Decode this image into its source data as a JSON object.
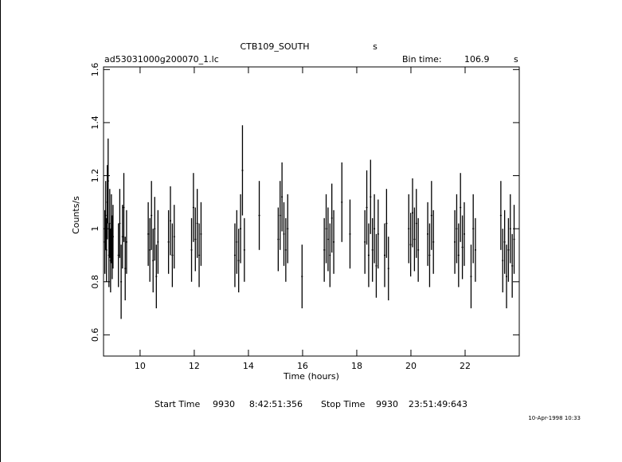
{
  "chart_data": {
    "type": "errorbar",
    "title": "CTB109_SOUTH",
    "title_unit": "s",
    "file_name": "ad53031000g200070_1.lc",
    "bin_time_label": "Bin time:",
    "bin_time": 106.9,
    "bin_time_unit": "s",
    "x_label": "Time (hours)",
    "y_label": "Counts/s",
    "xlim": [
      8.65,
      24.0
    ],
    "xticks": [
      10,
      12,
      14,
      16,
      18,
      20,
      22
    ],
    "ylim": [
      0.52,
      1.61
    ],
    "yticks": [
      0.6,
      0.8,
      1,
      1.2,
      1.4,
      1.6
    ],
    "color": "#000000",
    "x": [
      8.7,
      8.73,
      8.76,
      8.79,
      8.82,
      8.85,
      8.88,
      8.91,
      8.94,
      8.97,
      9.0,
      9.2,
      9.25,
      9.3,
      9.35,
      9.4,
      9.45,
      9.5,
      10.3,
      10.36,
      10.42,
      10.48,
      10.54,
      10.6,
      10.66,
      11.05,
      11.12,
      11.19,
      11.26,
      11.9,
      11.97,
      12.04,
      12.11,
      12.18,
      12.25,
      13.5,
      13.57,
      13.64,
      13.71,
      13.78,
      13.85,
      14.4,
      15.1,
      15.17,
      15.24,
      15.31,
      15.38,
      15.45,
      15.98,
      16.8,
      16.87,
      16.94,
      17.01,
      17.08,
      17.15,
      17.45,
      17.75,
      18.3,
      18.37,
      18.44,
      18.51,
      18.58,
      18.65,
      18.72,
      18.79,
      19.03,
      19.1,
      19.17,
      19.92,
      19.99,
      20.06,
      20.13,
      20.2,
      20.27,
      20.62,
      20.69,
      20.76,
      20.83,
      21.62,
      21.69,
      21.76,
      21.83,
      21.9,
      21.97,
      22.22,
      22.3,
      22.38,
      23.32,
      23.39,
      23.46,
      23.53,
      23.6,
      23.67,
      23.74,
      23.81
    ],
    "values": [
      0.95,
      1.05,
      0.92,
      1.1,
      1.18,
      0.9,
      1.02,
      0.88,
      1.0,
      0.93,
      0.97,
      0.9,
      1.02,
      0.8,
      0.97,
      1.08,
      0.85,
      0.95,
      0.98,
      0.92,
      1.05,
      0.88,
      1.0,
      0.82,
      0.95,
      0.95,
      1.03,
      0.9,
      0.97,
      0.92,
      1.08,
      0.96,
      1.02,
      0.9,
      0.98,
      0.9,
      0.95,
      0.88,
      1.0,
      1.22,
      0.92,
      1.05,
      0.96,
      1.05,
      1.12,
      0.98,
      0.92,
      1.0,
      0.82,
      0.92,
      1.0,
      0.96,
      0.9,
      1.04,
      0.95,
      1.1,
      0.98,
      0.95,
      1.08,
      0.9,
      1.12,
      0.92,
      1.0,
      0.86,
      0.98,
      0.9,
      1.02,
      0.85,
      1.0,
      0.94,
      1.06,
      0.96,
      1.02,
      0.92,
      0.98,
      0.9,
      1.05,
      0.95,
      0.95,
      1.0,
      0.9,
      1.08,
      0.93,
      0.98,
      0.82,
      1.0,
      0.92,
      1.05,
      0.88,
      0.95,
      0.82,
      0.92,
      1.0,
      0.86,
      0.96
    ],
    "errors": [
      0.12,
      0.13,
      0.12,
      0.14,
      0.16,
      0.12,
      0.13,
      0.12,
      0.13,
      0.12,
      0.12,
      0.12,
      0.13,
      0.14,
      0.12,
      0.13,
      0.12,
      0.12,
      0.12,
      0.12,
      0.13,
      0.12,
      0.12,
      0.12,
      0.12,
      0.12,
      0.13,
      0.12,
      0.12,
      0.12,
      0.13,
      0.12,
      0.13,
      0.12,
      0.12,
      0.12,
      0.12,
      0.12,
      0.13,
      0.17,
      0.12,
      0.13,
      0.12,
      0.13,
      0.13,
      0.12,
      0.12,
      0.13,
      0.12,
      0.12,
      0.13,
      0.12,
      0.12,
      0.13,
      0.12,
      0.15,
      0.13,
      0.12,
      0.14,
      0.12,
      0.14,
      0.12,
      0.13,
      0.12,
      0.13,
      0.12,
      0.13,
      0.12,
      0.13,
      0.12,
      0.13,
      0.12,
      0.13,
      0.12,
      0.12,
      0.12,
      0.13,
      0.12,
      0.12,
      0.13,
      0.12,
      0.13,
      0.12,
      0.12,
      0.12,
      0.13,
      0.12,
      0.13,
      0.12,
      0.12,
      0.12,
      0.12,
      0.13,
      0.12,
      0.13
    ]
  },
  "footer": {
    "start_label": "Start Time",
    "start_day": "9930",
    "start_time": "8:42:51:356",
    "stop_label": "Stop Time",
    "stop_day": "9930",
    "stop_time": "23:51:49:643",
    "timestamp": "10-Apr-1998 10:33"
  }
}
